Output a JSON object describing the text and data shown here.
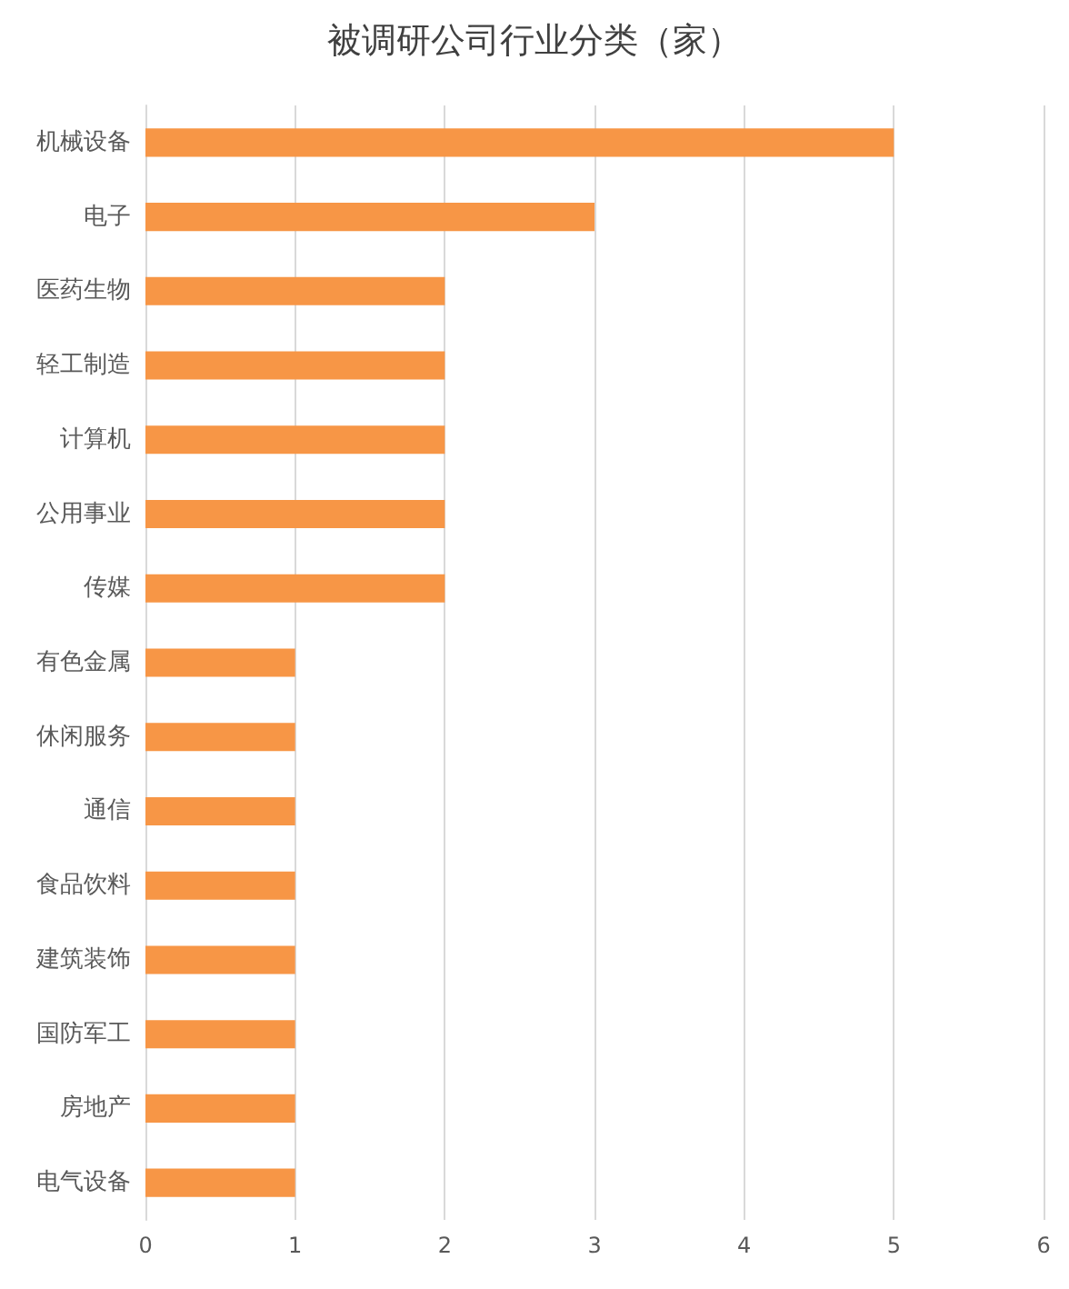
{
  "chart_data": {
    "type": "bar",
    "orientation": "horizontal",
    "title": "被调研公司行业分类（家）",
    "categories": [
      "机械设备",
      "电子",
      "医药生物",
      "轻工制造",
      "计算机",
      "公用事业",
      "传媒",
      "有色金属",
      "休闲服务",
      "通信",
      "食品饮料",
      "建筑装饰",
      "国防军工",
      "房地产",
      "电气设备"
    ],
    "values": [
      5,
      3,
      2,
      2,
      2,
      2,
      2,
      1,
      1,
      1,
      1,
      1,
      1,
      1,
      1
    ],
    "color": "#f79646",
    "xlim": [
      0,
      6
    ],
    "xticks": [
      0,
      1,
      2,
      3,
      4,
      5,
      6
    ],
    "grid": "x"
  }
}
